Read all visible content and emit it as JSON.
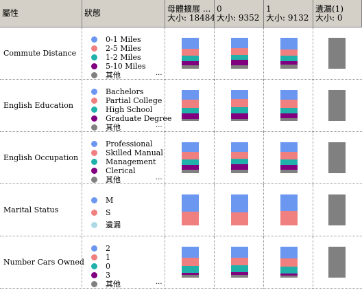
{
  "columns": {
    "attribute": "屬性",
    "states": "狀態",
    "population": {
      "title": "母體擴展 ...",
      "size": "大小: 18484"
    },
    "node0": {
      "title": "0",
      "size": "大小: 9352"
    },
    "node1": {
      "title": "1",
      "size": "大小: 9132"
    },
    "missing": {
      "title": "遺漏(1)",
      "size": "大小: 0"
    }
  },
  "colors": {
    "blue": "#6b97f0",
    "salmon": "#f08080",
    "teal": "#20b2aa",
    "purple": "#800080",
    "gray": "#808080",
    "lightblue": "#add8e6"
  },
  "more_marker": "...",
  "rows": [
    {
      "attribute": "Commute Distance",
      "states": [
        {
          "label": "0-1 Miles",
          "color": "#6b97f0"
        },
        {
          "label": "2-5 Miles",
          "color": "#f08080"
        },
        {
          "label": "1-2 Miles",
          "color": "#20b2aa"
        },
        {
          "label": "5-10 Miles",
          "color": "#800080"
        },
        {
          "label": "其他",
          "color": "#808080"
        }
      ],
      "has_more": true,
      "population": [
        0.36,
        0.22,
        0.17,
        0.13,
        0.12
      ],
      "node0": [
        0.33,
        0.22,
        0.16,
        0.17,
        0.12
      ],
      "node1": [
        0.38,
        0.2,
        0.17,
        0.12,
        0.13
      ]
    },
    {
      "attribute": "English Education",
      "states": [
        {
          "label": "Bachelors",
          "color": "#6b97f0"
        },
        {
          "label": "Partial College",
          "color": "#f08080"
        },
        {
          "label": "High School",
          "color": "#20b2aa"
        },
        {
          "label": "Graduate Degree",
          "color": "#800080"
        },
        {
          "label": "其他",
          "color": "#808080"
        }
      ],
      "has_more": true,
      "population": [
        0.3,
        0.27,
        0.19,
        0.17,
        0.07
      ],
      "node0": [
        0.28,
        0.27,
        0.2,
        0.18,
        0.07
      ],
      "node1": [
        0.3,
        0.27,
        0.18,
        0.17,
        0.08
      ]
    },
    {
      "attribute": "English Occupation",
      "states": [
        {
          "label": "Professional",
          "color": "#6b97f0"
        },
        {
          "label": "Skilled Manual",
          "color": "#f08080"
        },
        {
          "label": "Management",
          "color": "#20b2aa"
        },
        {
          "label": "Clerical",
          "color": "#800080"
        },
        {
          "label": "其他",
          "color": "#808080"
        }
      ],
      "has_more": true,
      "population": [
        0.31,
        0.25,
        0.17,
        0.16,
        0.11
      ],
      "node0": [
        0.3,
        0.24,
        0.17,
        0.17,
        0.12
      ],
      "node1": [
        0.31,
        0.25,
        0.17,
        0.16,
        0.11
      ]
    },
    {
      "attribute": "Marital Status",
      "states": [
        {
          "label": "M",
          "color": "#6b97f0"
        },
        {
          "label": "S",
          "color": "#f08080"
        },
        {
          "label": "遺漏",
          "color": "#add8e6"
        }
      ],
      "has_more": false,
      "population": [
        0.55,
        0.45,
        0.0
      ],
      "node0": [
        0.57,
        0.43,
        0.0
      ],
      "node1": [
        0.53,
        0.47,
        0.0
      ]
    },
    {
      "attribute": "Number Cars Owned",
      "states": [
        {
          "label": "2",
          "color": "#6b97f0"
        },
        {
          "label": "1",
          "color": "#f08080"
        },
        {
          "label": "0",
          "color": "#20b2aa"
        },
        {
          "label": "3",
          "color": "#800080"
        },
        {
          "label": "其他",
          "color": "#808080"
        }
      ],
      "has_more": true,
      "population": [
        0.36,
        0.26,
        0.22,
        0.08,
        0.08
      ],
      "node0": [
        0.35,
        0.25,
        0.22,
        0.09,
        0.09
      ],
      "node1": [
        0.38,
        0.27,
        0.21,
        0.07,
        0.07
      ]
    }
  ]
}
